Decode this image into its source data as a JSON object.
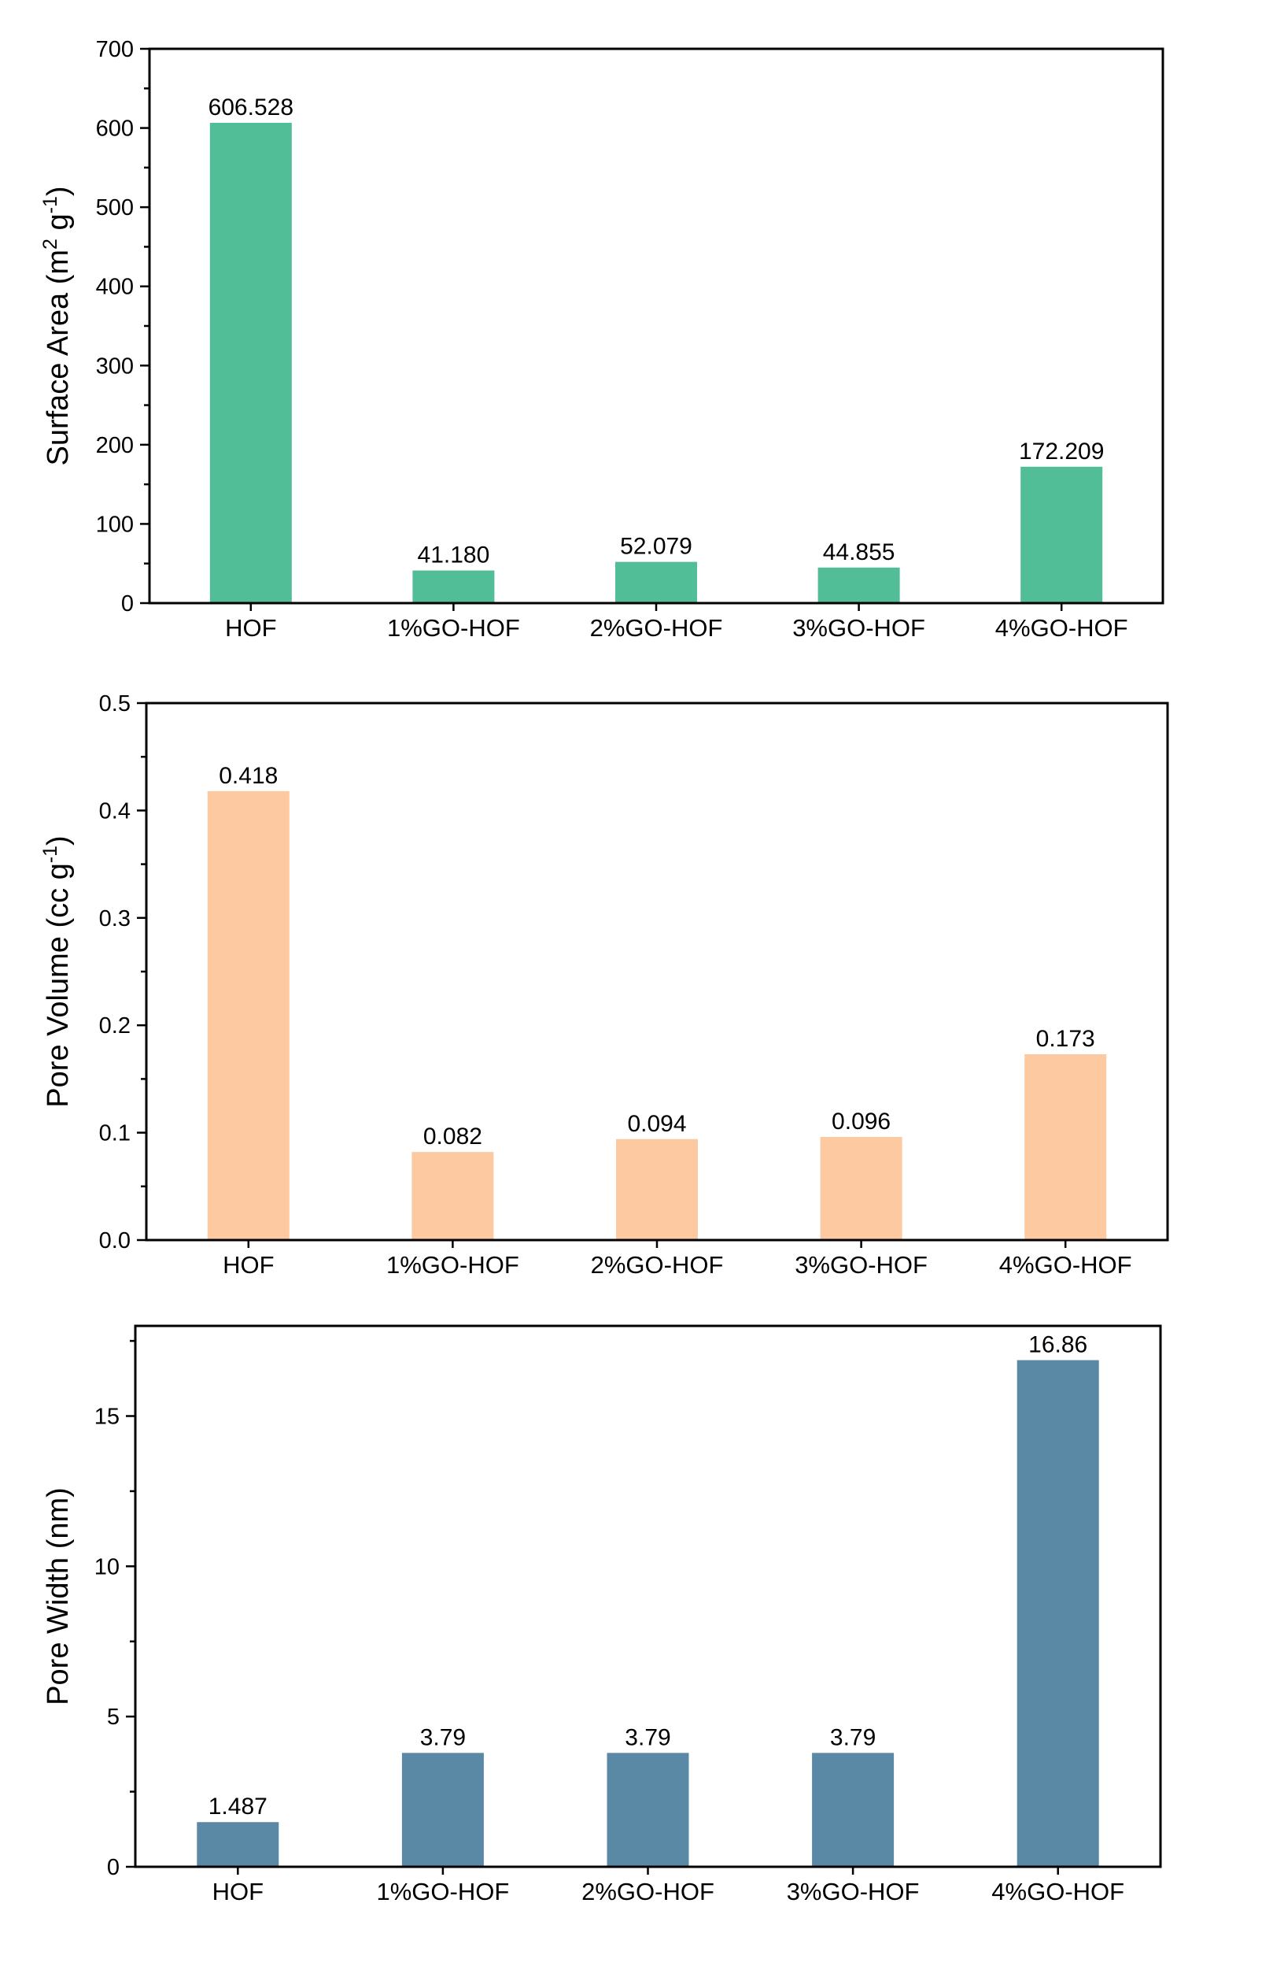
{
  "chart_data": [
    {
      "type": "bar",
      "categories": [
        "HOF",
        "1%GO-HOF",
        "2%GO-HOF",
        "3%GO-HOF",
        "4%GO-HOF"
      ],
      "values": [
        606.528,
        41.18,
        52.079,
        44.855,
        172.209
      ],
      "value_labels": [
        "606.528",
        "41.180",
        "52.079",
        "44.855",
        "172.209"
      ],
      "ylabel": {
        "main": "Surface Area (m",
        "sup1": "2",
        "mid": " g",
        "sup2": "-1",
        "end": ")"
      },
      "ylim": [
        0,
        700
      ],
      "yticks": [
        0,
        100,
        200,
        300,
        400,
        500,
        600,
        700
      ],
      "ytick_labels": [
        "0",
        "100",
        "200",
        "300",
        "400",
        "500",
        "600",
        "700"
      ],
      "color": "#52be97"
    },
    {
      "type": "bar",
      "categories": [
        "HOF",
        "1%GO-HOF",
        "2%GO-HOF",
        "3%GO-HOF",
        "4%GO-HOF"
      ],
      "values": [
        0.418,
        0.082,
        0.094,
        0.096,
        0.173
      ],
      "value_labels": [
        "0.418",
        "0.082",
        "0.094",
        "0.096",
        "0.173"
      ],
      "ylabel": {
        "main": "Pore Volume (cc g",
        "sup1": "",
        "mid": "",
        "sup2": "-1",
        "end": ")"
      },
      "ylim": [
        0,
        0.5
      ],
      "yticks": [
        0,
        0.1,
        0.2,
        0.3,
        0.4,
        0.5
      ],
      "ytick_labels": [
        "0.0",
        "0.1",
        "0.2",
        "0.3",
        "0.4",
        "0.5"
      ],
      "color": "#fdc9a1"
    },
    {
      "type": "bar",
      "categories": [
        "HOF",
        "1%GO-HOF",
        "2%GO-HOF",
        "3%GO-HOF",
        "4%GO-HOF"
      ],
      "values": [
        1.487,
        3.79,
        3.79,
        3.79,
        16.86
      ],
      "value_labels": [
        "1.487",
        "3.79",
        "3.79",
        "3.79",
        "16.86"
      ],
      "ylabel": {
        "main": "Pore Width (nm)",
        "sup1": "",
        "mid": "",
        "sup2": "",
        "end": ""
      },
      "ylim": [
        0,
        18
      ],
      "yticks": [
        0,
        5,
        10,
        15
      ],
      "ytick_labels": [
        "0",
        "5",
        "10",
        "15"
      ],
      "color": "#5a89a6"
    }
  ]
}
